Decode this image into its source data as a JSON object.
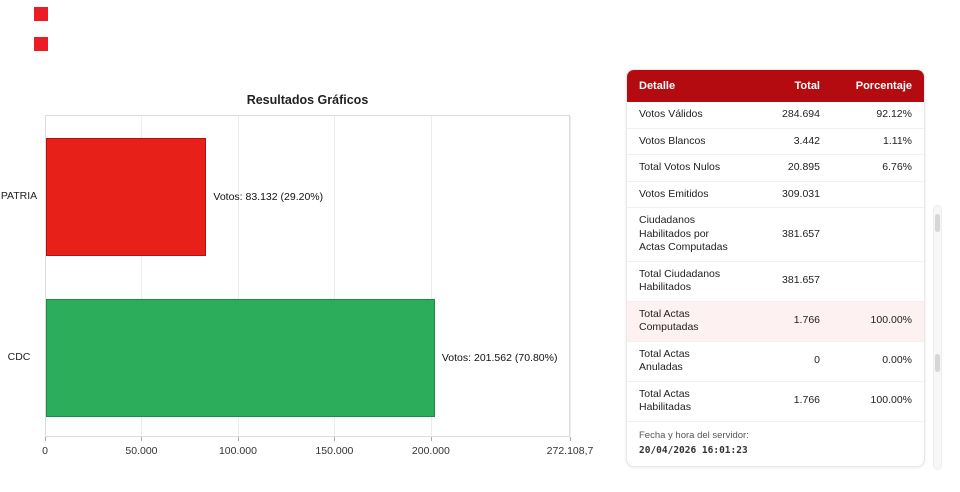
{
  "decor": {
    "square_color": "#ec1c24"
  },
  "chart_data": {
    "type": "bar",
    "orientation": "horizontal",
    "title": "Resultados Gráficos",
    "categories": [
      "PATRIA",
      "CDC"
    ],
    "values": [
      83132,
      201562
    ],
    "percentages": [
      29.2,
      70.8
    ],
    "labels": [
      "Votos: 83.132 (29.20%)",
      "Votos: 201.562 (70.80%)"
    ],
    "colors": [
      "#e8201a",
      "#2bad5c"
    ],
    "border_colors": [
      "#b8100f",
      "#1d8a47"
    ],
    "x_ticks": [
      "0",
      "50.000",
      "100.000",
      "150.000",
      "200.000",
      "272.108,7"
    ],
    "x_tick_values": [
      0,
      50000,
      100000,
      150000,
      200000,
      272108.7
    ],
    "xlim": [
      0,
      272108.7
    ],
    "grid": true,
    "legend_position": "none"
  },
  "table": {
    "header_bg": "#b30b10",
    "highlight_bg": "#fdf1f1",
    "headers": [
      "Detalle",
      "Total",
      "Porcentaje"
    ],
    "rows": [
      {
        "detalle": "Votos Válidos",
        "total": "284.694",
        "porcentaje": "92.12%",
        "highlight": false
      },
      {
        "detalle": "Votos Blancos",
        "total": "3.442",
        "porcentaje": "1.11%",
        "highlight": false
      },
      {
        "detalle": "Total Votos Nulos",
        "total": "20.895",
        "porcentaje": "6.76%",
        "highlight": false
      },
      {
        "detalle": "Votos Emitidos",
        "total": "309.031",
        "porcentaje": "",
        "highlight": false
      },
      {
        "detalle": "Ciudadanos Habilitados por Actas Computadas",
        "total": "381.657",
        "porcentaje": "",
        "highlight": false
      },
      {
        "detalle": "Total Ciudadanos Habilitados",
        "total": "381.657",
        "porcentaje": "",
        "highlight": false
      },
      {
        "detalle": "Total Actas Computadas",
        "total": "1.766",
        "porcentaje": "100.00%",
        "highlight": true
      },
      {
        "detalle": "Total Actas Anuladas",
        "total": "0",
        "porcentaje": "0.00%",
        "highlight": false
      },
      {
        "detalle": "Total Actas Habilitadas",
        "total": "1.766",
        "porcentaje": "100.00%",
        "highlight": false
      }
    ],
    "footer": {
      "label": "Fecha y hora del servidor:",
      "datetime": "20/04/2026 16:01:23"
    }
  }
}
